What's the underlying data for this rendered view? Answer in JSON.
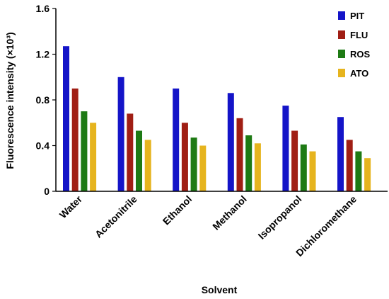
{
  "chart_data": {
    "type": "bar",
    "xlabel": "Solvent",
    "ylabel": "Fluorescence intensity (×10³)",
    "ylim": [
      0,
      1.6
    ],
    "yticks": [
      "0",
      "0.4",
      "0.8",
      "1.2",
      "1.6"
    ],
    "yticks_values": [
      0,
      0.4,
      0.8,
      1.2,
      1.6
    ],
    "grid": false,
    "legend_position": "top-right",
    "categories": [
      "Water",
      "Acetonitrile",
      "Ethanol",
      "Methanol",
      "Isopropanol",
      "Dichloromethane"
    ],
    "series": [
      {
        "name": "PIT",
        "color": "#1414c8",
        "values": [
          1.27,
          1.0,
          0.9,
          0.86,
          0.75,
          0.65
        ]
      },
      {
        "name": "FLU",
        "color": "#a01e14",
        "values": [
          0.9,
          0.68,
          0.6,
          0.64,
          0.53,
          0.45
        ]
      },
      {
        "name": "ROS",
        "color": "#1e7a14",
        "values": [
          0.7,
          0.53,
          0.47,
          0.49,
          0.41,
          0.35
        ]
      },
      {
        "name": "ATO",
        "color": "#e6b41e",
        "values": [
          0.6,
          0.45,
          0.4,
          0.42,
          0.35,
          0.29
        ]
      }
    ]
  }
}
